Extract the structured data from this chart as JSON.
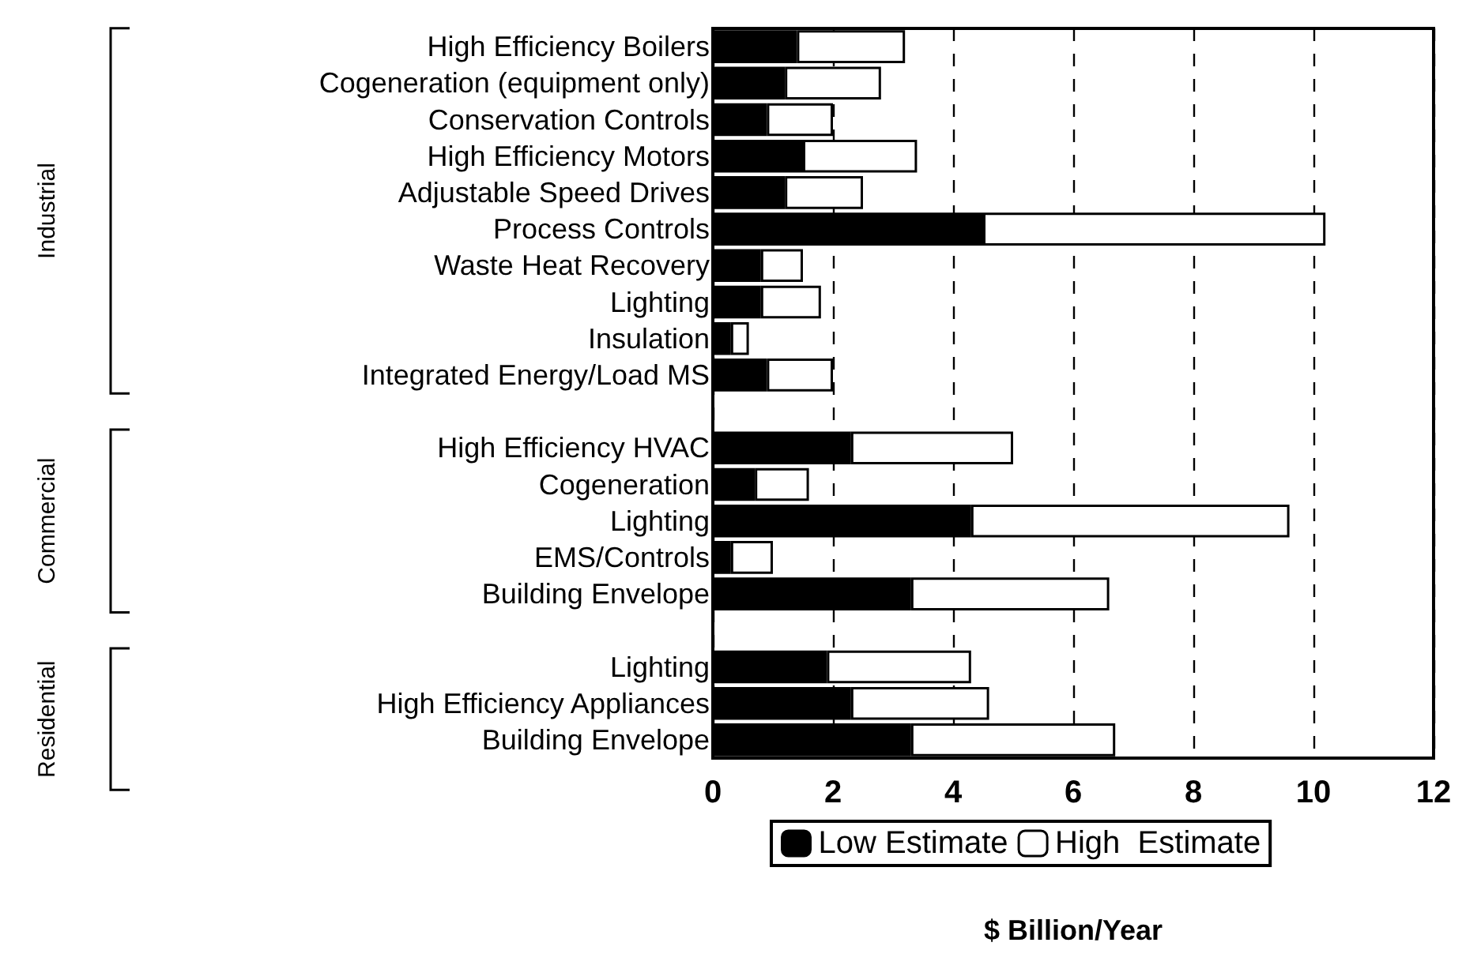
{
  "chart_data": {
    "type": "bar",
    "orientation": "horizontal",
    "stacked": true,
    "categories": [
      "High Efficiency Boilers",
      "Cogeneration (equipment only)",
      "Conservation Controls",
      "High Efficiency Motors",
      "Adjustable Speed Drives",
      "Process Controls",
      "Waste Heat Recovery",
      "Lighting",
      "Insulation",
      "Integrated Energy/Load MS",
      null,
      "High Efficiency HVAC",
      "Cogeneration",
      "Lighting",
      "EMS/Controls",
      "Building Envelope",
      null,
      "Lighting",
      "High Efficiency Appliances",
      "Building Envelope"
    ],
    "series": [
      {
        "name": "Low Estimate",
        "color": "#000000",
        "values": [
          1.4,
          1.2,
          0.9,
          1.5,
          1.2,
          4.5,
          0.8,
          0.8,
          0.3,
          0.9,
          null,
          2.3,
          0.7,
          4.3,
          0.3,
          3.3,
          null,
          1.9,
          2.3,
          3.3
        ]
      },
      {
        "name": "High  Estimate",
        "color": "#ffffff",
        "values": [
          1.8,
          1.6,
          1.1,
          1.9,
          1.3,
          5.7,
          0.7,
          1.0,
          0.3,
          1.1,
          null,
          2.7,
          0.9,
          5.3,
          0.7,
          3.3,
          null,
          2.4,
          2.3,
          3.4
        ]
      }
    ],
    "xlim": [
      0,
      12
    ],
    "xticks": [
      0,
      2,
      4,
      6,
      8,
      10,
      12
    ],
    "xlabel": "$ Billion/Year",
    "grid": "x",
    "legend": "bottom",
    "annotations": [
      "Industrial",
      "Commercial",
      "Residential"
    ]
  }
}
